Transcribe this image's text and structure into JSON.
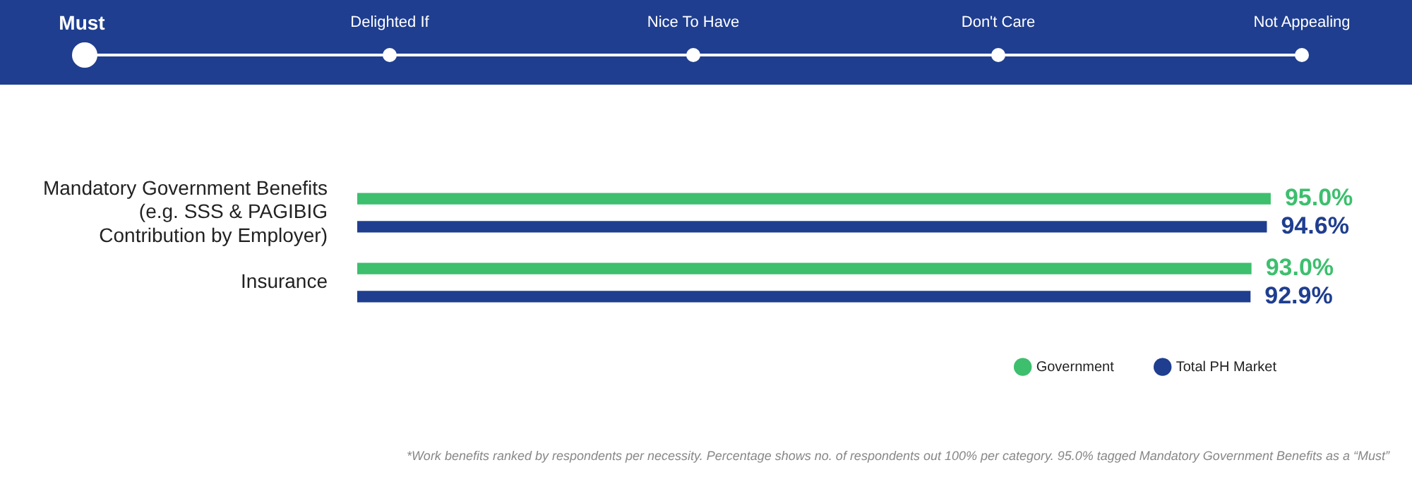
{
  "chart_data": {
    "type": "bar",
    "orientation": "horizontal",
    "categories": [
      "Mandatory Government Benefits (e.g. SSS & PAGIBIG Contribution by Employer)",
      "Insurance"
    ],
    "series": [
      {
        "name": "Government",
        "color": "#3dbf6e",
        "values": [
          95.0,
          93.0
        ],
        "value_labels": [
          "95.0%",
          "93.0%"
        ]
      },
      {
        "name": "Total PH Market",
        "color": "#1f3e8f",
        "values": [
          94.6,
          92.9
        ],
        "value_labels": [
          "94.6%",
          "92.9%"
        ]
      }
    ],
    "tick_labels": "y",
    "legend": "bottom right",
    "annotations": [
      "Must",
      "Delighted If",
      "Nice To Have",
      "Don't Care",
      "Not Appealing",
      "*Work benefits ranked by respondents per necessity. Percentage shows no. of respondents out 100% per category. 95.0% tagged Mandatory Government Benefits as a “Must”"
    ]
  }
}
